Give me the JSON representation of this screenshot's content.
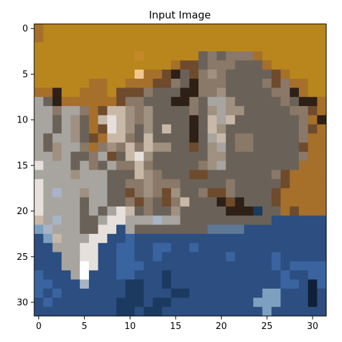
{
  "chart_data": {
    "type": "heatmap",
    "title": "Input Image",
    "xlabel": "",
    "ylabel": "",
    "x_range": [
      -0.5,
      31.5
    ],
    "y_range": [
      31.5,
      -0.5
    ],
    "x_ticks": [
      0,
      5,
      10,
      15,
      20,
      25,
      30
    ],
    "y_ticks": [
      0,
      5,
      10,
      15,
      20,
      25,
      30
    ],
    "grid": false,
    "image_size": [
      32,
      32
    ],
    "palette": {
      "A": "#b8861c",
      "B": "#c48a2a",
      "C": "#a66f2a",
      "D": "#6e4b2c",
      "E": "#2e2016",
      "F": "#8a7868",
      "G": "#6a6258",
      "H": "#a09080",
      "I": "#c8b8a8",
      "J": "#e6e0dc",
      "K": "#a8a4a0",
      "L": "#2c4e80",
      "M": "#3a64a0",
      "N": "#1c3a60",
      "O": "#7ea0c0",
      "P": "#ffffff",
      "Q": "#102038",
      "R": "#a8b4c6",
      "S": "#f2c890",
      "T": "#5e7898"
    },
    "pixels": [
      "CAAAAAAAAAAAAAAAAAAAAAAAAAAAAAAA",
      "CAAAAAAAAAAAAAAAAAAAAAAAAAAAAAAA",
      "AAAAAAAAAAAAAAAAAAAAAAAAAAAAAAAA",
      "AAAAAAAAAAABAAAAAAGFGFFFCAAAAAAA",
      "AAAAAAAAAAAAAAACDDGFFFGGGCAAAAAA",
      "AAAAAAAAAAASCCDEGDFHFGGGGGDCAAAA",
      "AAAAAACCAACCCDDFGEFFFGGGGFDFCCAA",
      "CCEAACCCADDDFGGGEEFFHGGGGGFFECAA",
      "KGECCCCCCDFFGGGEEFGKKHGGGGGFGEEC",
      "KKFKKFCDIIHFHGGGGFGHKHHGGGGGFFDC",
      "KKGKHGCIJIHFHGGGGEGIKIGGGGGGGFCE",
      "KKGKHGCDJIHGHGIGGEGIHGGGGGGGGFDC",
      "KGKKHGDCIIFGIGGGGEGKIGFFGGGGGFCC",
      "KGHKKFCFHFIFIHHGGDGHKGFFGGGGGDCC",
      "KKHKGGFKDGIJHGGGGGGHHGGGGGGGGFCC",
      "JKKKGKFGKFFIFGGGGGFHKGGGGGGGGCCC",
      "KKKKHKKKGGGIHFGGGDDGGGGGGGFDCCCC",
      "JKKKKKKKGGFFHFFFGGGGGFGGGGGDCCCC",
      "JKRKKHKKGGDFHFDHGGFDDFGGGGDCCCCC",
      "JKKKKGKKGGFDFGDFIGGGEDEGGGDCCCCC",
      "JKKKKGKGKJIGFGGHGGGGGEEENGGCDCCC",
      "IKRKKGGKJJKKKRKKGGGGGGGGGGLLLLLL",
      "ORKKKGGJJLKGGGGGGGGTTTTLLLLLLLLL",
      "LOIKKKJJLLMLLLLLLLLLLLLLLLLLLLLL",
      "LLKKKJJLLMMLLMMLLMLLLLLLLLLLLLLL",
      "LLLKKJJLLMMLLMLLLLLLLMLLLLMLLLLL",
      "LLLKKPJLLMMMLLLLLLLLLLLLLLMLMMMM",
      "MLLLKPLLLMMLLLNLLLLLLLLLLLLMLLMM",
      "MMLLLRLLLLNNLLNLLLLLLLLLLLLMMLQM",
      "MLMLLLLLLLNNLLLNNLLLLLLLLOOLLLQL",
      "LMLLLLLLLNNNLNNLLLLLLLLLOOOLLLQL",
      "LLLLLLLLLNNLNNLLLLLLLLLLLOLLLLLL"
    ]
  }
}
